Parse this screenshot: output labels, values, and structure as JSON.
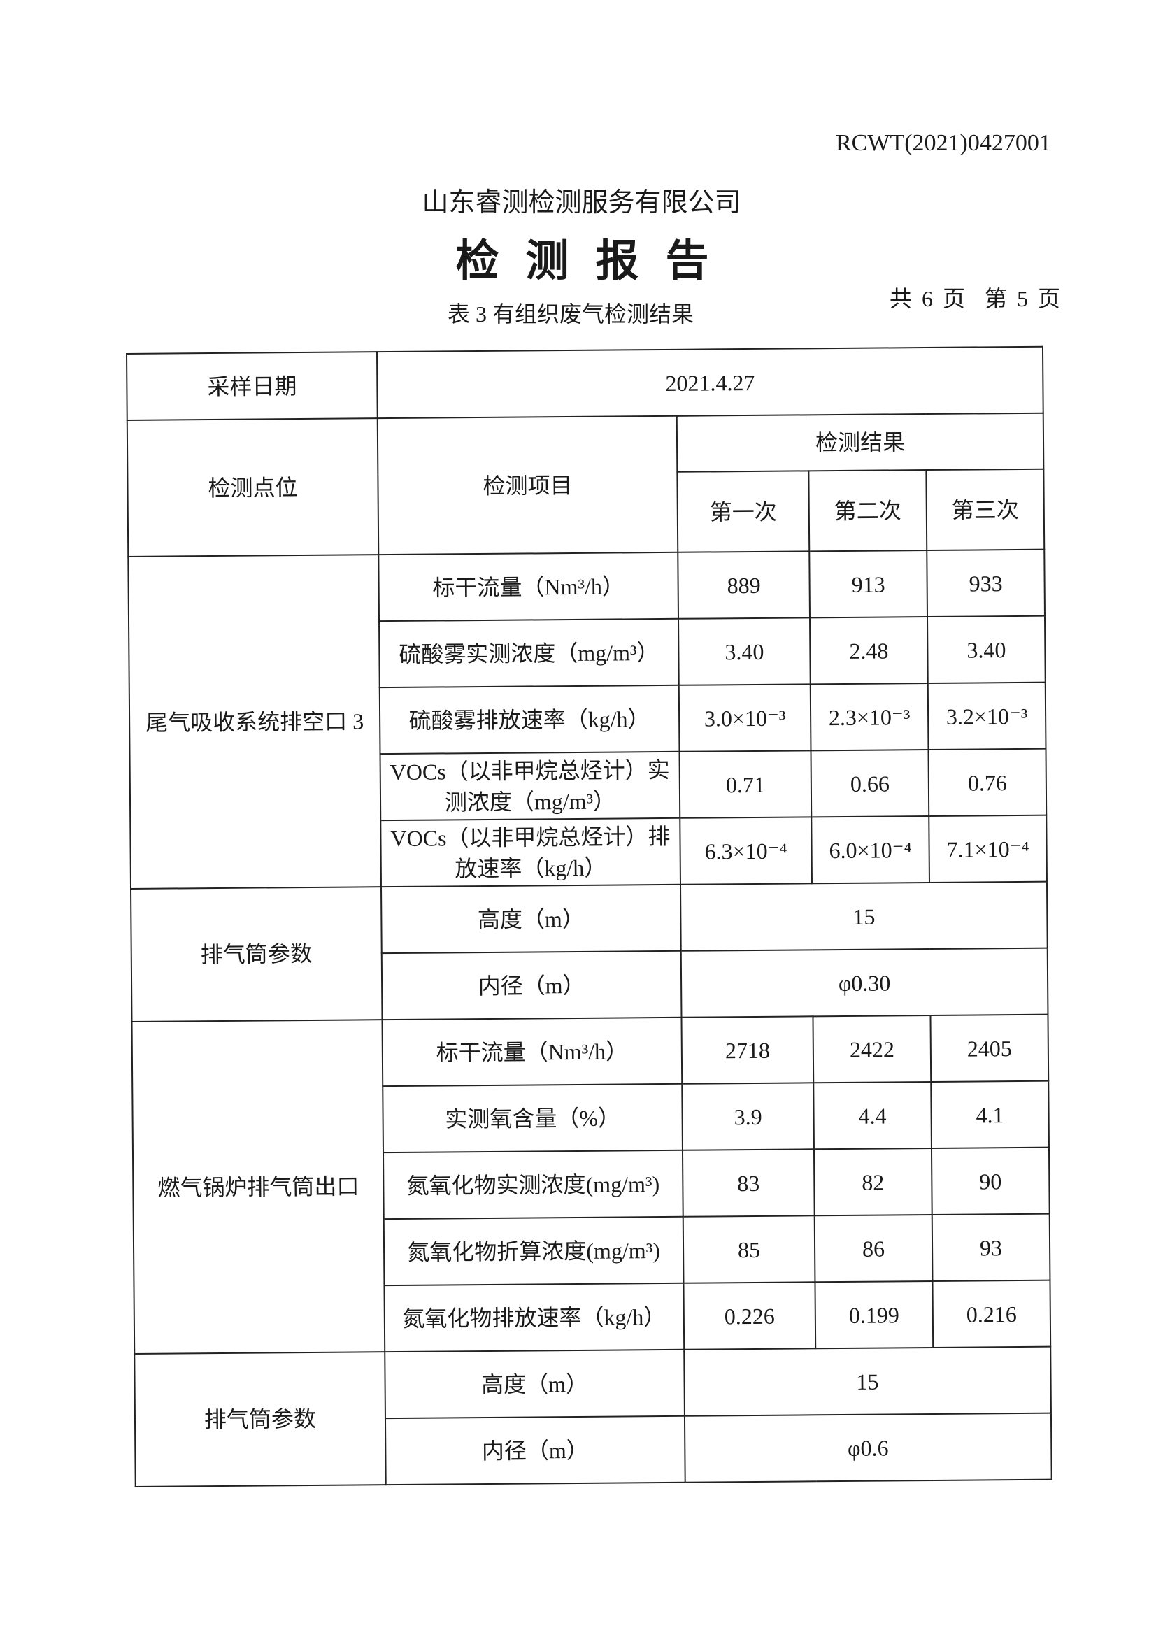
{
  "header": {
    "report_no": "RCWT(2021)0427001",
    "company": "山东睿测检测服务有限公司",
    "title": "检测报告",
    "table_caption": "表 3   有组织废气检测结果",
    "total_pages": "共 6 页",
    "current_page": "第 5 页"
  },
  "table": {
    "date_label": "采样日期",
    "date_value": "2021.4.27",
    "col_point": "检测点位",
    "col_item": "检测项目",
    "col_results": "检测结果",
    "col_runs": [
      "第一次",
      "第二次",
      "第三次"
    ],
    "sections": [
      {
        "point": "尾气吸收系统排空口 3",
        "rows": [
          {
            "item": "标干流量（Nm³/h）",
            "values": [
              "889",
              "913",
              "933"
            ]
          },
          {
            "item": "硫酸雾实测浓度（mg/m³）",
            "values": [
              "3.40",
              "2.48",
              "3.40"
            ]
          },
          {
            "item": "硫酸雾排放速率（kg/h）",
            "values": [
              "3.0×10⁻³",
              "2.3×10⁻³",
              "3.2×10⁻³"
            ]
          },
          {
            "item": "VOCs（以非甲烷总烃计）实测浓度（mg/m³）",
            "values": [
              "0.71",
              "0.66",
              "0.76"
            ]
          },
          {
            "item": "VOCs（以非甲烷总烃计）排放速率（kg/h）",
            "values": [
              "6.3×10⁻⁴",
              "6.0×10⁻⁴",
              "7.1×10⁻⁴"
            ]
          }
        ]
      },
      {
        "point": "排气筒参数",
        "params": [
          {
            "item": "高度（m）",
            "value": "15"
          },
          {
            "item": "内径（m）",
            "value": "φ0.30"
          }
        ]
      },
      {
        "point": "燃气锅炉排气筒出口",
        "rows": [
          {
            "item": "标干流量（Nm³/h）",
            "values": [
              "2718",
              "2422",
              "2405"
            ]
          },
          {
            "item": "实测氧含量（%）",
            "values": [
              "3.9",
              "4.4",
              "4.1"
            ]
          },
          {
            "item": "氮氧化物实测浓度(mg/m³)",
            "values": [
              "83",
              "82",
              "90"
            ]
          },
          {
            "item": "氮氧化物折算浓度(mg/m³)",
            "values": [
              "85",
              "86",
              "93"
            ]
          },
          {
            "item": "氮氧化物排放速率（kg/h）",
            "values": [
              "0.226",
              "0.199",
              "0.216"
            ]
          }
        ]
      },
      {
        "point": "排气筒参数",
        "params": [
          {
            "item": "高度（m）",
            "value": "15"
          },
          {
            "item": "内径（m）",
            "value": "φ0.6"
          }
        ]
      }
    ]
  }
}
